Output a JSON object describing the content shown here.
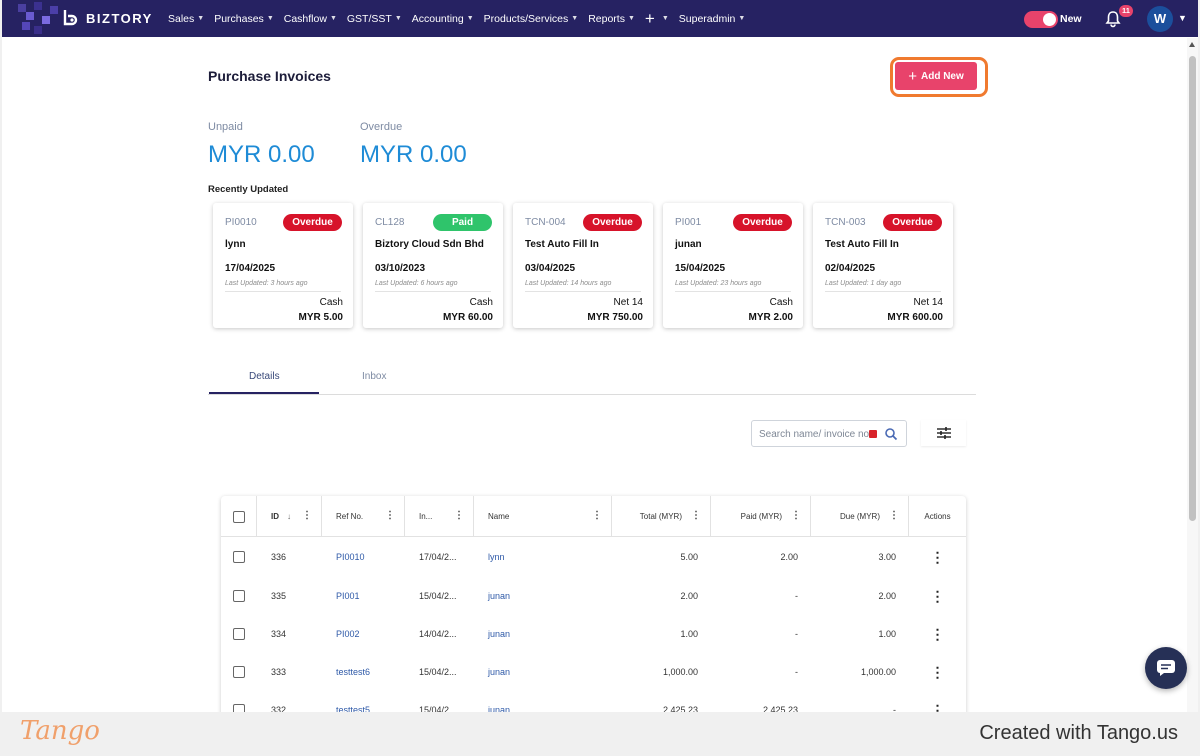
{
  "nav": {
    "brand": "BIZTORY",
    "menu": [
      "Sales",
      "Purchases",
      "Cashflow",
      "GST/SST",
      "Accounting",
      "Products/Services",
      "Reports"
    ],
    "plus": "+",
    "superadmin": "Superadmin",
    "toggle_label": "New",
    "notification_count": "11",
    "avatar_initial": "W"
  },
  "page": {
    "title": "Purchase Invoices",
    "add_button": "Add New"
  },
  "stats": {
    "unpaid_label": "Unpaid",
    "unpaid_value": "MYR 0.00",
    "overdue_label": "Overdue",
    "overdue_value": "MYR 0.00"
  },
  "recent": {
    "label": "Recently Updated",
    "cards": [
      {
        "id": "PI0010",
        "status": "Overdue",
        "name": "lynn",
        "date": "17/04/2025",
        "updated": "Last Updated: 3 hours ago",
        "term": "Cash",
        "amount": "MYR 5.00"
      },
      {
        "id": "CL128",
        "status": "Paid",
        "name": "Biztory Cloud Sdn Bhd",
        "date": "03/10/2023",
        "updated": "Last Updated: 6 hours ago",
        "term": "Cash",
        "amount": "MYR 60.00"
      },
      {
        "id": "TCN-004",
        "status": "Overdue",
        "name": "Test Auto Fill In",
        "date": "03/04/2025",
        "updated": "Last Updated: 14 hours ago",
        "term": "Net 14",
        "amount": "MYR 750.00"
      },
      {
        "id": "PI001",
        "status": "Overdue",
        "name": "junan",
        "date": "15/04/2025",
        "updated": "Last Updated: 23 hours ago",
        "term": "Cash",
        "amount": "MYR 2.00"
      },
      {
        "id": "TCN-003",
        "status": "Overdue",
        "name": "Test Auto Fill In",
        "date": "02/04/2025",
        "updated": "Last Updated: 1 day ago",
        "term": "Net 14",
        "amount": "MYR 600.00"
      }
    ]
  },
  "tabs": [
    "Details",
    "Inbox"
  ],
  "search": {
    "placeholder": "Search name/ invoice no."
  },
  "table": {
    "headers": [
      "ID",
      "Ref No.",
      "In...",
      "Name",
      "Total (MYR)",
      "Paid (MYR)",
      "Due (MYR)",
      "Actions"
    ],
    "rows": [
      {
        "id": "336",
        "ref": "PI0010",
        "date": "17/04/2...",
        "name": "lynn",
        "total": "5.00",
        "paid": "2.00",
        "due": "3.00"
      },
      {
        "id": "335",
        "ref": "PI001",
        "date": "15/04/2...",
        "name": "junan",
        "total": "2.00",
        "paid": "-",
        "due": "2.00"
      },
      {
        "id": "334",
        "ref": "PI002",
        "date": "14/04/2...",
        "name": "junan",
        "total": "1.00",
        "paid": "-",
        "due": "1.00"
      },
      {
        "id": "333",
        "ref": "testtest6",
        "date": "15/04/2...",
        "name": "junan",
        "total": "1,000.00",
        "paid": "-",
        "due": "1,000.00"
      },
      {
        "id": "332",
        "ref": "testtest5",
        "date": "15/04/2...",
        "name": "junan",
        "total": "2,425.23",
        "paid": "2,425.23",
        "due": "-"
      }
    ]
  },
  "footer": {
    "tango_logo": "Tango",
    "created_with": "Created with Tango.us"
  },
  "colors": {
    "nav_bg": "#262262",
    "accent_pink": "#e8436b",
    "overdue_red": "#d7132a",
    "paid_green": "#2fc46b",
    "value_blue": "#1e8bd6",
    "highlight_orange": "#f07a2f"
  }
}
